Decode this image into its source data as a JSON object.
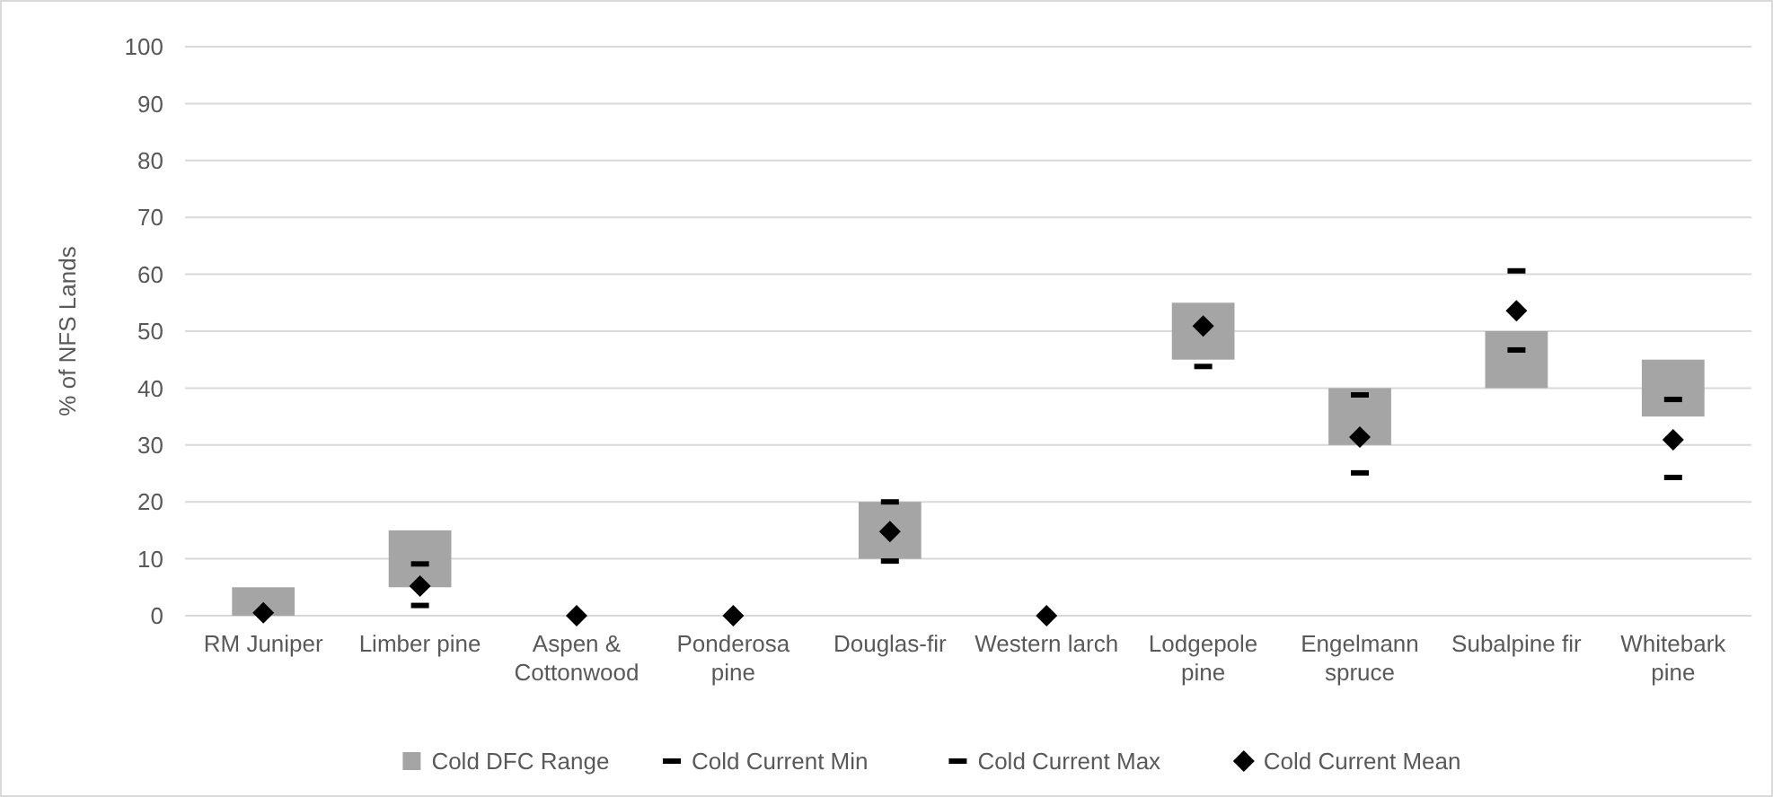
{
  "chart_data": {
    "type": "bar",
    "ylabel": "% of NFS Lands",
    "categories": [
      "RM Juniper",
      "Limber pine",
      "Aspen & Cottonwood",
      "Ponderosa pine",
      "Douglas-fir",
      "Western larch",
      "Lodgepole pine",
      "Engelmann spruce",
      "Subalpine fir",
      "Whitebark pine"
    ],
    "ylim": [
      0,
      100
    ],
    "yticks": [
      0,
      10,
      20,
      30,
      40,
      50,
      60,
      70,
      80,
      90,
      100
    ],
    "grid": "y",
    "legend": "bottom",
    "series": [
      {
        "name": "Cold DFC Range",
        "color": "#a5a5a5",
        "base": [
          0,
          5,
          null,
          null,
          10,
          null,
          45,
          30,
          40,
          35
        ],
        "values": [
          5,
          10,
          null,
          null,
          10,
          null,
          10,
          10,
          10,
          10
        ]
      },
      {
        "name": "Cold Current Min",
        "type": "scatter",
        "color": "#000000",
        "values": [
          null,
          1.8,
          null,
          null,
          9.6,
          null,
          43.8,
          25.1,
          46.7,
          24.3
        ]
      },
      {
        "name": "Cold Current Max",
        "type": "scatter",
        "color": "#000000",
        "values": [
          null,
          9.1,
          null,
          null,
          20,
          null,
          null,
          38.8,
          60.6,
          38
        ]
      },
      {
        "name": "Cold Current Mean",
        "type": "scatter",
        "marker": "diamond",
        "color": "#000000",
        "values": [
          0.5,
          5.2,
          0,
          0,
          14.8,
          0,
          50.9,
          31.4,
          53.6,
          30.9
        ]
      }
    ]
  }
}
